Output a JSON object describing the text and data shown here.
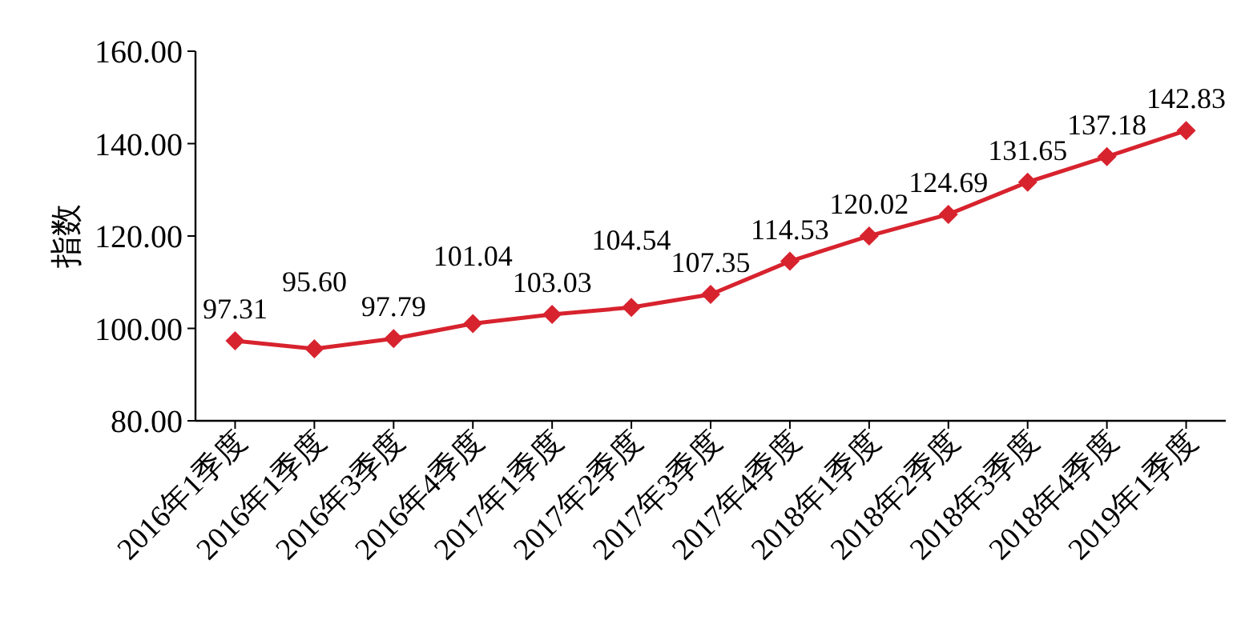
{
  "chart_data": {
    "type": "line",
    "ylabel": "指数",
    "categories": [
      "2016年1季度",
      "2016年1季度",
      "2016年3季度",
      "2016年4季度",
      "2017年1季度",
      "2017年2季度",
      "2017年3季度",
      "2017年4季度",
      "2018年1季度",
      "2018年2季度",
      "2018年3季度",
      "2018年4季度",
      "2019年1季度"
    ],
    "series": [
      {
        "color": "#d7232e",
        "values": [
          97.31,
          95.6,
          97.79,
          101.04,
          103.03,
          104.54,
          107.35,
          114.53,
          120.02,
          124.69,
          131.65,
          137.18,
          142.83
        ]
      }
    ],
    "ylim": [
      80,
      160
    ],
    "yticks": [
      {
        "value": 80,
        "label": "80.00"
      },
      {
        "value": 100,
        "label": "100.00"
      },
      {
        "value": 120,
        "label": "120.00"
      },
      {
        "value": 140,
        "label": "140.00"
      },
      {
        "value": 160,
        "label": "160.00"
      }
    ],
    "value_labels": [
      "97.31",
      "95.60",
      "97.79",
      "101.04",
      "103.03",
      "104.54",
      "107.35",
      "114.53",
      "120.02",
      "124.69",
      "131.65",
      "137.18",
      "142.83"
    ],
    "marker": "diamond",
    "line_style": "solid"
  }
}
